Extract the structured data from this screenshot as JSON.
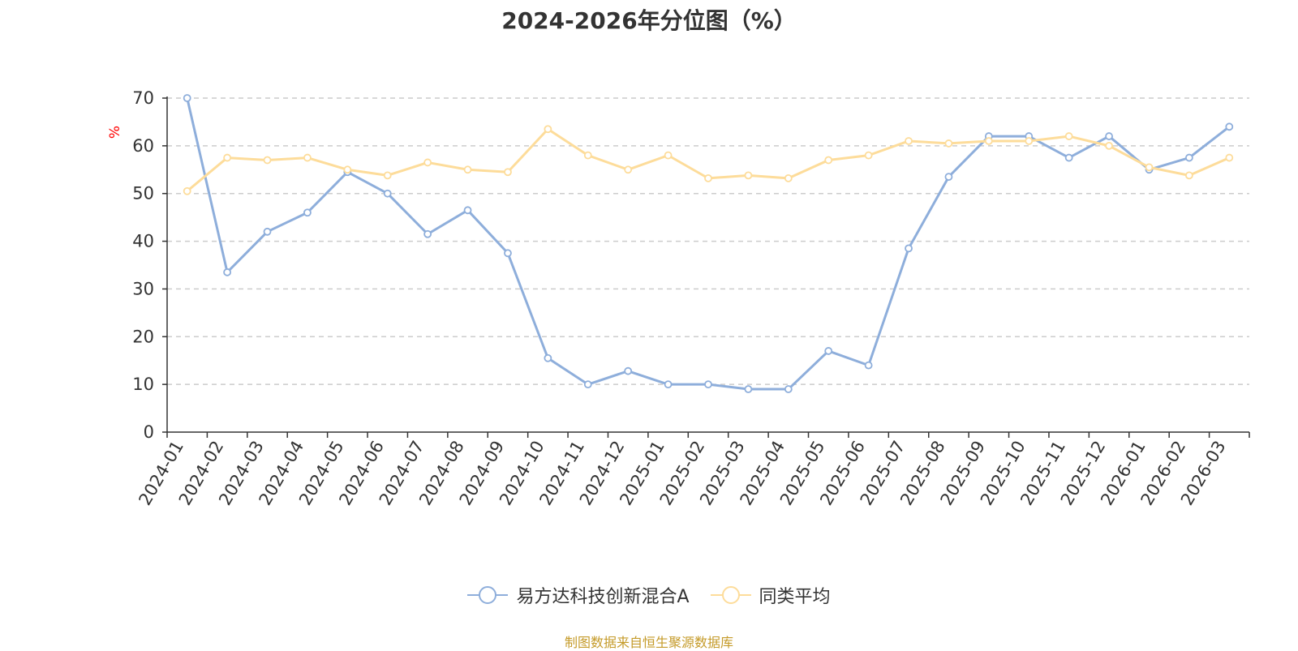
{
  "chart_data": {
    "type": "line",
    "title": "2024-2026年分位图（%）",
    "ylabel": "%",
    "xlabel": "",
    "ylim": [
      0,
      70
    ],
    "yticks": [
      0,
      10,
      20,
      30,
      40,
      50,
      60,
      70
    ],
    "grid": "horizontal dashed",
    "legend_position": "bottom",
    "categories": [
      "2024-01",
      "2024-02",
      "2024-03",
      "2024-04",
      "2024-05",
      "2024-06",
      "2024-07",
      "2024-08",
      "2024-09",
      "2024-10",
      "2024-11",
      "2024-12",
      "2025-01",
      "2025-02",
      "2025-03",
      "2025-04",
      "2025-05",
      "2025-06",
      "2025-07",
      "2025-08",
      "2025-09",
      "2025-10",
      "2025-11",
      "2025-12",
      "2026-01",
      "2026-02",
      "2026-03"
    ],
    "series": [
      {
        "name": "易方达科技创新混合A",
        "color": "#8eaedb",
        "values": [
          70,
          33.5,
          42,
          46,
          54.5,
          50,
          41.5,
          46.5,
          37.5,
          15.5,
          10,
          12.8,
          10,
          10,
          9,
          9,
          17,
          14,
          38.5,
          53.5,
          62,
          62,
          57.5,
          62,
          55,
          57.5,
          64
        ]
      },
      {
        "name": "同类平均",
        "color": "#fddc9a",
        "values": [
          50.5,
          57.5,
          57,
          57.5,
          55,
          53.8,
          56.5,
          55,
          54.5,
          63.5,
          58,
          55,
          58,
          53.2,
          53.8,
          53.2,
          57,
          58,
          61,
          60.5,
          61,
          61,
          62,
          60,
          55.5,
          53.8,
          57.5
        ]
      }
    ]
  },
  "legend": {
    "items": [
      "易方达科技创新混合A",
      "同类平均"
    ]
  },
  "source_text": "制图数据来自恒生聚源数据库"
}
